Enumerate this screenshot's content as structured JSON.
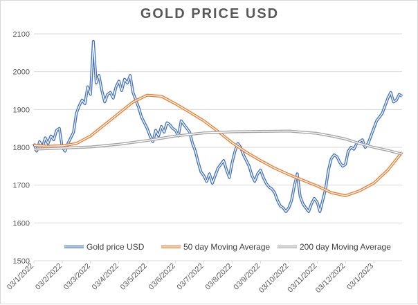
{
  "chart_data": {
    "type": "line",
    "title": "GOLD PRICE USD",
    "xlabel": "",
    "ylabel": "",
    "ylim": [
      1500,
      2100
    ],
    "yticks": [
      1500,
      1600,
      1700,
      1800,
      1900,
      2000,
      2100
    ],
    "xtick_labels": [
      "03/1/2022",
      "03/2/2022",
      "03/3/2022",
      "03/4/2022",
      "03/5/2022",
      "03/6/2022",
      "03/7/2022",
      "03/8/2022",
      "03/9/2022",
      "03/10/2022",
      "03/11/2022",
      "03/12/2022",
      "03/1/2023"
    ],
    "x_end_month": 13.0,
    "grid": "horizontal",
    "legend_position": "bottom-inside",
    "colors": {
      "gold": "#4472c4",
      "ma50": "#ed7d31",
      "ma200": "#a5a5a5",
      "grid": "#d9d9d9",
      "title": "#595959"
    },
    "series": [
      {
        "name": "Gold price USD",
        "key": "gold",
        "x": [
          0.0,
          0.1,
          0.2,
          0.3,
          0.4,
          0.5,
          0.6,
          0.7,
          0.8,
          0.9,
          1.0,
          1.1,
          1.2,
          1.3,
          1.4,
          1.5,
          1.6,
          1.7,
          1.8,
          1.9,
          2.0,
          2.1,
          2.2,
          2.3,
          2.4,
          2.5,
          2.6,
          2.7,
          2.8,
          2.9,
          3.0,
          3.1,
          3.2,
          3.3,
          3.4,
          3.5,
          3.6,
          3.7,
          3.8,
          3.9,
          4.0,
          4.1,
          4.2,
          4.3,
          4.4,
          4.5,
          4.6,
          4.7,
          4.8,
          4.9,
          5.0,
          5.1,
          5.2,
          5.3,
          5.4,
          5.5,
          5.6,
          5.7,
          5.8,
          5.9,
          6.0,
          6.1,
          6.2,
          6.3,
          6.4,
          6.5,
          6.6,
          6.7,
          6.8,
          6.9,
          7.0,
          7.1,
          7.2,
          7.3,
          7.4,
          7.5,
          7.6,
          7.7,
          7.8,
          7.9,
          8.0,
          8.1,
          8.2,
          8.3,
          8.4,
          8.5,
          8.6,
          8.7,
          8.8,
          8.9,
          9.0,
          9.1,
          9.2,
          9.3,
          9.4,
          9.5,
          9.6,
          9.7,
          9.8,
          9.9,
          10.0,
          10.1,
          10.2,
          10.3,
          10.4,
          10.5,
          10.6,
          10.7,
          10.8,
          10.9,
          11.0,
          11.1,
          11.2,
          11.3,
          11.4,
          11.5,
          11.6,
          11.7,
          11.8,
          11.9,
          12.0,
          12.1,
          12.2,
          12.3,
          12.4,
          12.5,
          12.6,
          12.7,
          12.8,
          12.9,
          13.0
        ],
        "values": [
          1810,
          1790,
          1815,
          1800,
          1825,
          1810,
          1830,
          1820,
          1845,
          1850,
          1800,
          1790,
          1810,
          1825,
          1840,
          1890,
          1910,
          1925,
          1915,
          1960,
          1940,
          2080,
          1970,
          1990,
          1950,
          1920,
          1940,
          1945,
          1930,
          1960,
          1975,
          1950,
          1980,
          1970,
          1990,
          1945,
          1925,
          1905,
          1880,
          1865,
          1850,
          1830,
          1815,
          1845,
          1830,
          1855,
          1840,
          1865,
          1860,
          1850,
          1845,
          1830,
          1870,
          1860,
          1850,
          1840,
          1810,
          1790,
          1760,
          1735,
          1725,
          1710,
          1730,
          1705,
          1725,
          1745,
          1755,
          1765,
          1740,
          1720,
          1760,
          1790,
          1810,
          1800,
          1780,
          1765,
          1750,
          1725,
          1710,
          1730,
          1740,
          1720,
          1705,
          1695,
          1690,
          1680,
          1660,
          1645,
          1640,
          1630,
          1640,
          1660,
          1700,
          1730,
          1670,
          1650,
          1640,
          1630,
          1650,
          1665,
          1655,
          1630,
          1660,
          1690,
          1740,
          1770,
          1780,
          1775,
          1760,
          1750,
          1755,
          1790,
          1800,
          1795,
          1810,
          1815,
          1820,
          1800,
          1810,
          1830,
          1850,
          1870,
          1880,
          1890,
          1910,
          1930,
          1945,
          1920,
          1925,
          1940,
          1935
        ]
      },
      {
        "name": "50 day Moving Average",
        "key": "ma50",
        "x": [
          0.0,
          0.5,
          1.0,
          1.5,
          2.0,
          2.5,
          3.0,
          3.5,
          4.0,
          4.5,
          5.0,
          5.5,
          6.0,
          6.5,
          7.0,
          7.5,
          8.0,
          8.5,
          9.0,
          9.5,
          10.0,
          10.5,
          11.0,
          11.5,
          12.0,
          12.5,
          13.0
        ],
        "values": [
          1805,
          1803,
          1804,
          1810,
          1830,
          1860,
          1890,
          1920,
          1938,
          1935,
          1915,
          1893,
          1870,
          1842,
          1812,
          1787,
          1765,
          1745,
          1728,
          1713,
          1698,
          1680,
          1672,
          1685,
          1705,
          1740,
          1787
        ]
      },
      {
        "name": "200 day Moving Average",
        "key": "ma200",
        "x": [
          0.0,
          1.0,
          2.0,
          3.0,
          4.0,
          5.0,
          6.0,
          7.0,
          8.0,
          9.0,
          10.0,
          10.5,
          11.0,
          11.5,
          12.0,
          12.5,
          13.0
        ],
        "values": [
          1795,
          1798,
          1801,
          1808,
          1818,
          1830,
          1838,
          1841,
          1842,
          1843,
          1837,
          1830,
          1822,
          1810,
          1800,
          1792,
          1782
        ]
      }
    ]
  }
}
